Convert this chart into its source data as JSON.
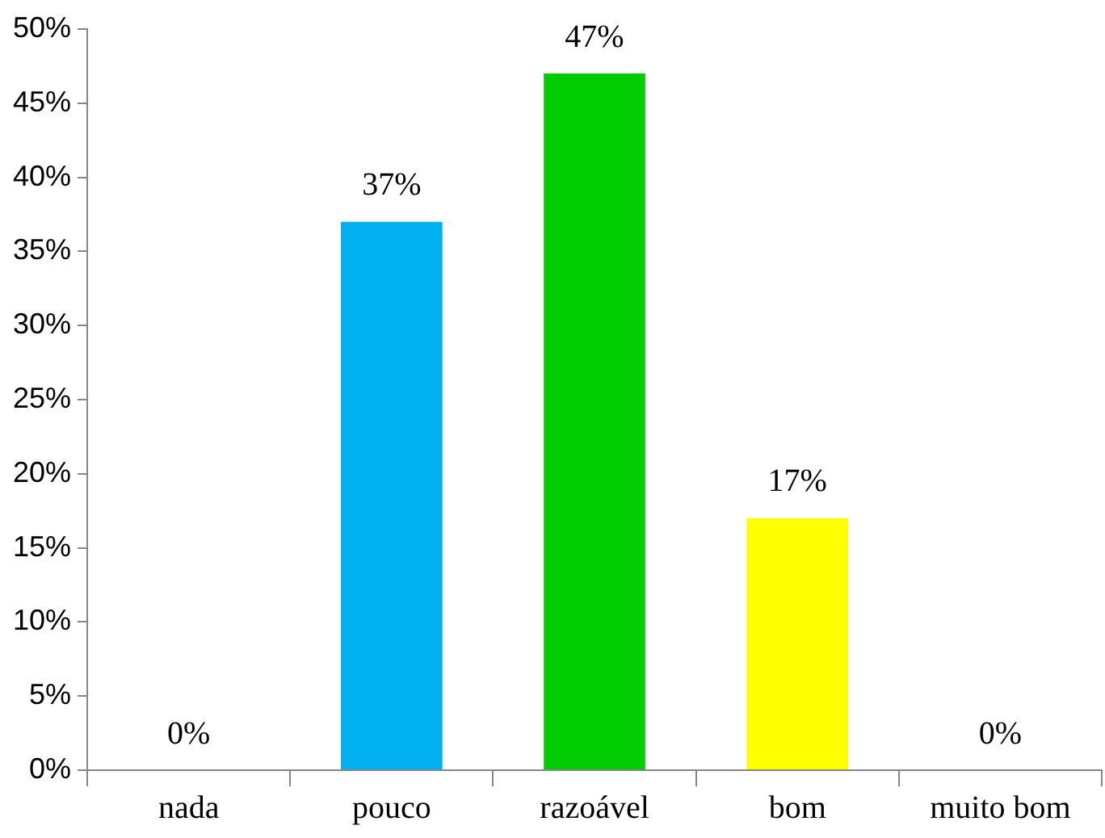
{
  "chart_data": {
    "type": "bar",
    "categories": [
      "nada",
      "pouco",
      "razoável",
      "bom",
      "muito bom"
    ],
    "values": [
      0,
      37,
      47,
      17,
      0
    ],
    "colors": [
      "#4f81bd",
      "#00b0f0",
      "#00cc00",
      "#ffff00",
      "#4f81bd"
    ],
    "value_labels": [
      "0%",
      "37%",
      "47%",
      "17%",
      "0%"
    ],
    "ylim": [
      0,
      50
    ],
    "yticks": [
      {
        "value": 0,
        "label": "0%"
      },
      {
        "value": 5,
        "label": "5%"
      },
      {
        "value": 10,
        "label": "10%"
      },
      {
        "value": 15,
        "label": "15%"
      },
      {
        "value": 20,
        "label": "20%"
      },
      {
        "value": 25,
        "label": "25%"
      },
      {
        "value": 30,
        "label": "30%"
      },
      {
        "value": 35,
        "label": "35%"
      },
      {
        "value": 40,
        "label": "40%"
      },
      {
        "value": 45,
        "label": "45%"
      },
      {
        "value": 50,
        "label": "50%"
      }
    ],
    "grid": false,
    "legend": false
  }
}
